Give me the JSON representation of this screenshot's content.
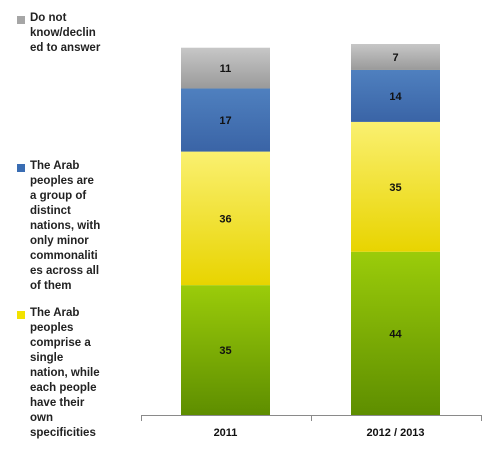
{
  "chart_data": {
    "type": "bar",
    "stacked": true,
    "categories": [
      "2011",
      "2012 / 2013"
    ],
    "series": [
      {
        "name": "The Arab peoples comprise a single nation, while each people have their own specificities",
        "values": [
          35,
          44
        ],
        "color": "#7fb000"
      },
      {
        "name": "The Arab peoples are a group of distinct nations, with only minor commonalities across all of them",
        "values": [
          36,
          35
        ],
        "color": "#f0e24a"
      },
      {
        "name": "Do not know/declined to answer",
        "values": [
          17,
          14
        ],
        "color": "#4a78b5"
      },
      {
        "name": "",
        "values": [
          11,
          7
        ],
        "color": "#b5b5b5"
      }
    ],
    "ylim": [
      0,
      100
    ],
    "legend_position": "left",
    "grid": false
  },
  "legend": [
    {
      "text": "Do not\nknow/declin\ned to answer",
      "color": "#a6a6a6"
    },
    {
      "text": "The Arab\npeoples are\na group of\ndistinct\nnations, with\nonly minor\ncommonaliti\nes across all\nof them",
      "color": "#3a6db3"
    },
    {
      "text": "The Arab\npeoples\ncomprise a\nsingle\nnation, while\neach people\nhave their\nown\nspecificities",
      "color": "#f2e200"
    }
  ]
}
